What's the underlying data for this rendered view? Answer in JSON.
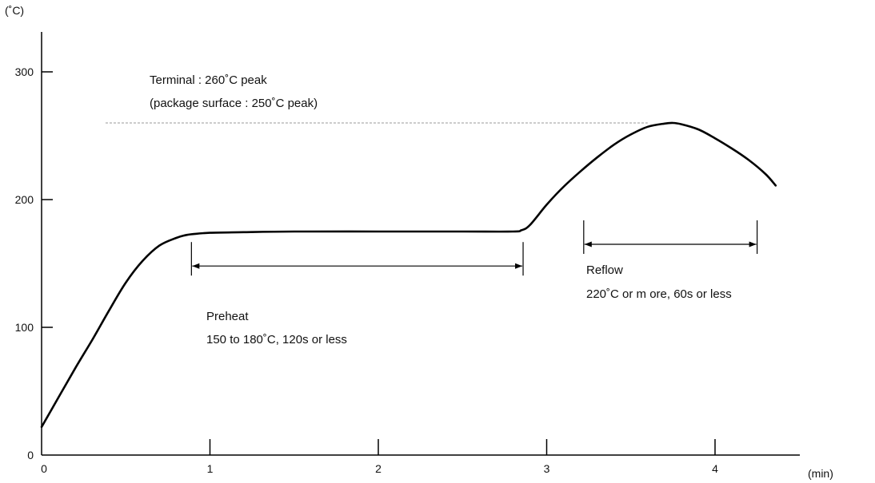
{
  "chart_data": {
    "type": "line",
    "title": "",
    "xlabel": "(min)",
    "ylabel": "(˚C)",
    "xlim": [
      0,
      4.45
    ],
    "ylim": [
      0,
      330
    ],
    "x_ticks": [
      0,
      1,
      2,
      3,
      4
    ],
    "y_ticks": [
      0,
      100,
      200,
      300
    ],
    "grid": false,
    "series": [
      {
        "x": [
          0,
          0.1,
          0.2,
          0.3,
          0.4,
          0.5,
          0.6,
          0.7,
          0.8,
          0.85,
          0.9,
          1.0,
          1.2,
          1.5,
          2.0,
          2.5,
          2.8,
          2.85,
          2.9,
          3.0,
          3.1,
          3.2,
          3.3,
          3.4,
          3.5,
          3.6,
          3.7,
          3.75,
          3.8,
          3.9,
          4.0,
          4.1,
          4.2,
          4.3,
          4.36
        ],
        "y": [
          22,
          45,
          68,
          90,
          113,
          135,
          152,
          164,
          170,
          172,
          173,
          174,
          174.5,
          175,
          175,
          175,
          175,
          176,
          180,
          196,
          210,
          222,
          233,
          243,
          251,
          257,
          259.5,
          260,
          259,
          255,
          248,
          240,
          231,
          220,
          211
        ]
      }
    ],
    "reference_line": {
      "y": 260,
      "x_range": [
        0.38,
        3.6
      ],
      "style": "dashed"
    },
    "annotations": {
      "peak_line1": "Terminal : 260˚C peak",
      "peak_line2": "(package surface : 250˚C peak)",
      "preheat_title": "Preheat",
      "preheat_detail": "150 to 180˚C, 120s or less",
      "reflow_title": "Reflow",
      "reflow_detail": "220˚C or m ore, 60s or less"
    },
    "ranges": {
      "preheat": {
        "x": [
          0.89,
          2.86
        ],
        "y": 148
      },
      "reflow": {
        "x": [
          3.22,
          4.25
        ],
        "y": 165
      }
    }
  }
}
